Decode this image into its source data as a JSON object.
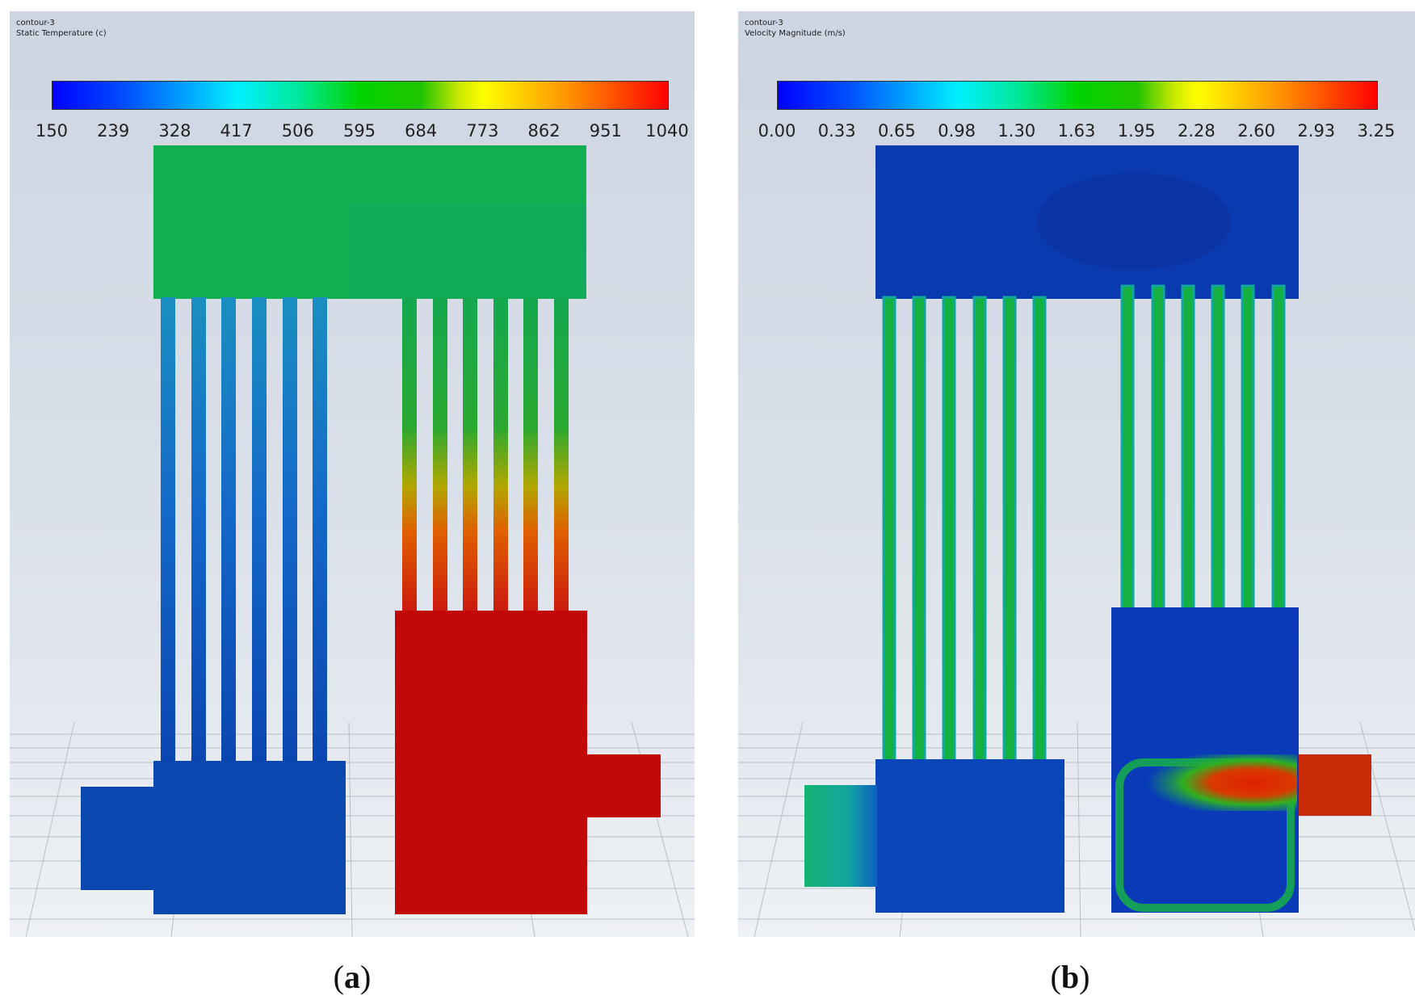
{
  "figures": [
    {
      "id": "a",
      "caption_letter": "a",
      "title_line1": "contour-3",
      "title_line2": "Static Temperature (c)",
      "colorbar_ticks": [
        "150",
        "239",
        "328",
        "417",
        "506",
        "595",
        "684",
        "773",
        "862",
        "951",
        "1040"
      ]
    },
    {
      "id": "b",
      "caption_letter": "b",
      "title_line1": "contour-3",
      "title_line2": "Velocity Magnitude (m/s)",
      "colorbar_ticks": [
        "0.00",
        "0.33",
        "0.65",
        "0.98",
        "1.30",
        "1.63",
        "1.95",
        "2.28",
        "2.60",
        "2.93",
        "3.25"
      ]
    }
  ],
  "colors": {
    "cold_blue": "#0a44b0",
    "mid_green": "#14b048",
    "hot_red": "#c30808",
    "slow_blue": "#0a3ab0"
  }
}
